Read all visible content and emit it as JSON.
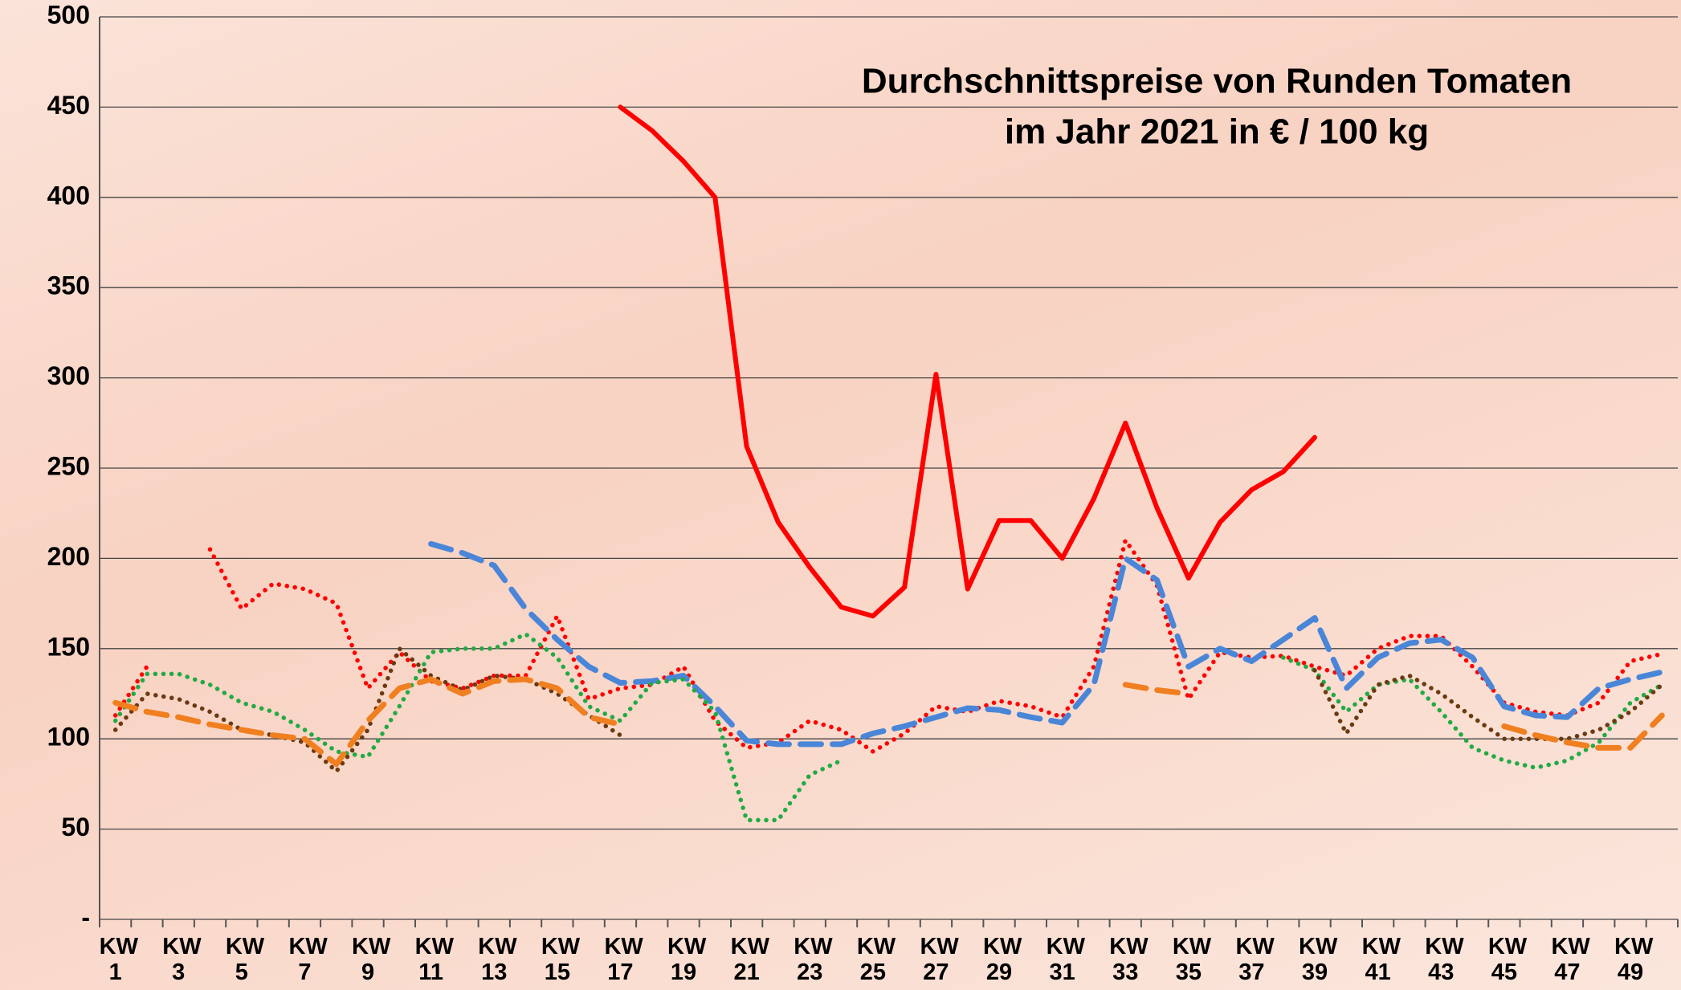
{
  "chart_data": {
    "type": "line",
    "title": [
      "Durchschnittspreise von Runden Tomaten",
      "im Jahr 2021 in € / 100 kg"
    ],
    "categories": [
      "KW 1",
      null,
      "KW 3",
      null,
      "KW 5",
      null,
      "KW 7",
      null,
      "KW 9",
      null,
      "KW 11",
      null,
      "KW 13",
      null,
      "KW 15",
      null,
      "KW 17",
      null,
      "KW 19",
      null,
      "KW 21",
      null,
      "KW 23",
      null,
      "KW 25",
      null,
      "KW 27",
      null,
      "KW 29",
      null,
      "KW 31",
      null,
      "KW 33",
      null,
      "KW 35",
      null,
      "KW 37",
      null,
      "KW 39",
      null,
      "KW 41",
      null,
      "KW 43",
      null,
      "KW 45",
      null,
      "KW 47",
      null,
      "KW 49",
      null
    ],
    "ylim": [
      0,
      500
    ],
    "yticks": [
      {
        "value": 0,
        "label": "-"
      },
      50,
      100,
      150,
      200,
      250,
      300,
      350,
      400,
      450,
      500
    ],
    "grid": true,
    "series": [
      {
        "color": "#ff0000",
        "style": "solid",
        "values": [
          null,
          null,
          null,
          null,
          null,
          null,
          null,
          null,
          null,
          null,
          null,
          null,
          null,
          null,
          null,
          null,
          450,
          437,
          420,
          400,
          262,
          220,
          195,
          173,
          168,
          184,
          302,
          183,
          221,
          221,
          200,
          233,
          275,
          228,
          189,
          220,
          238,
          248,
          267,
          null,
          null,
          null,
          null,
          null,
          null,
          null,
          null,
          null,
          null,
          null
        ]
      },
      {
        "color": "#ff0000",
        "style": "dotted",
        "values": [
          113,
          140,
          null,
          205,
          172,
          186,
          183,
          175,
          128,
          148,
          132,
          128,
          135,
          135,
          168,
          122,
          128,
          130,
          140,
          110,
          95,
          98,
          110,
          105,
          93,
          103,
          118,
          115,
          121,
          118,
          112,
          140,
          210,
          185,
          122,
          148,
          145,
          146,
          140,
          135,
          150,
          157,
          157,
          140,
          120,
          115,
          113,
          120,
          143,
          147
        ]
      },
      {
        "color": "#4a86d8",
        "style": "dashed",
        "values": [
          null,
          null,
          null,
          null,
          null,
          null,
          null,
          null,
          null,
          null,
          208,
          203,
          196,
          172,
          155,
          140,
          131,
          132,
          135,
          118,
          99,
          97,
          97,
          97,
          103,
          107,
          112,
          117,
          116,
          112,
          109,
          130,
          200,
          188,
          140,
          150,
          143,
          155,
          167,
          128,
          145,
          153,
          155,
          145,
          118,
          113,
          112,
          128,
          133,
          137
        ]
      },
      {
        "color": "#22aa44",
        "style": "dotted",
        "values": [
          110,
          136,
          136,
          130,
          120,
          115,
          105,
          93,
          90,
          118,
          148,
          150,
          150,
          158,
          145,
          118,
          110,
          131,
          133,
          115,
          55,
          55,
          80,
          88,
          null,
          null,
          null,
          null,
          null,
          null,
          null,
          null,
          null,
          null,
          null,
          null,
          null,
          145,
          138,
          115,
          130,
          133,
          115,
          95,
          88,
          84,
          88,
          98,
          120,
          130
        ]
      },
      {
        "color": "#6b3a12",
        "style": "dotted",
        "values": [
          105,
          125,
          122,
          115,
          105,
          102,
          98,
          82,
          105,
          150,
          135,
          127,
          135,
          133,
          125,
          113,
          102,
          null,
          null,
          null,
          null,
          null,
          null,
          null,
          null,
          null,
          null,
          null,
          null,
          null,
          null,
          null,
          null,
          null,
          null,
          null,
          null,
          null,
          138,
          103,
          130,
          135,
          125,
          112,
          100,
          100,
          100,
          105,
          115,
          130
        ]
      },
      {
        "color": "#f07f20",
        "style": "dashed",
        "values": [
          120,
          115,
          112,
          108,
          105,
          102,
          100,
          86,
          110,
          128,
          133,
          125,
          132,
          133,
          128,
          112,
          108,
          null,
          null,
          null,
          null,
          null,
          null,
          null,
          null,
          null,
          null,
          null,
          null,
          null,
          null,
          null,
          130,
          127,
          125,
          null,
          null,
          null,
          null,
          null,
          null,
          null,
          null,
          null,
          107,
          102,
          98,
          95,
          95,
          113
        ]
      }
    ]
  }
}
